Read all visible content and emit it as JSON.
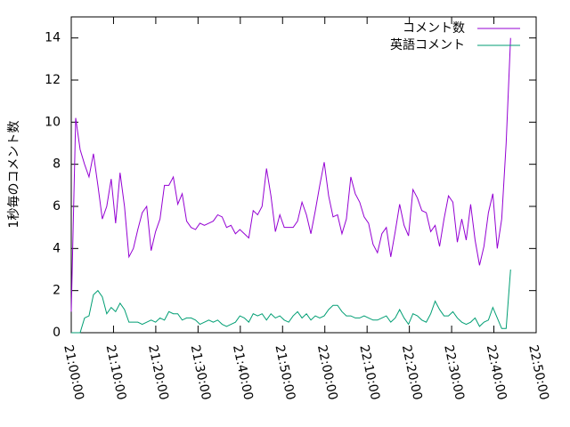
{
  "chart_data": {
    "type": "line",
    "y_label": "1秒毎のコメント数",
    "x": [
      "21:00:00",
      "21:01:03",
      "21:02:06",
      "21:03:09",
      "21:04:12",
      "21:05:15",
      "21:06:18",
      "21:07:21",
      "21:08:24",
      "21:09:27",
      "21:10:30",
      "21:11:33",
      "21:12:36",
      "21:13:39",
      "21:14:42",
      "21:15:45",
      "21:16:48",
      "21:17:51",
      "21:18:54",
      "21:19:57",
      "21:21:00",
      "21:22:03",
      "21:23:06",
      "21:24:09",
      "21:25:12",
      "21:26:15",
      "21:27:18",
      "21:28:21",
      "21:29:24",
      "21:30:27",
      "21:31:30",
      "21:32:33",
      "21:33:36",
      "21:34:39",
      "21:35:42",
      "21:36:45",
      "21:37:48",
      "21:38:51",
      "21:39:54",
      "21:40:57",
      "21:42:00",
      "21:43:03",
      "21:44:06",
      "21:45:09",
      "21:46:12",
      "21:47:15",
      "21:48:18",
      "21:49:21",
      "21:50:24",
      "21:51:27",
      "21:52:30",
      "21:53:33",
      "21:54:36",
      "21:55:39",
      "21:56:42",
      "21:57:45",
      "21:58:48",
      "21:59:51",
      "22:00:54",
      "22:01:57",
      "22:03:00",
      "22:04:03",
      "22:05:06",
      "22:06:09",
      "22:07:12",
      "22:08:15",
      "22:09:18",
      "22:10:21",
      "22:11:24",
      "22:12:27",
      "22:13:30",
      "22:14:33",
      "22:15:36",
      "22:16:39",
      "22:17:42",
      "22:18:45",
      "22:19:48",
      "22:20:51",
      "22:21:54",
      "22:22:57",
      "22:24:00",
      "22:25:03",
      "22:26:06",
      "22:27:09",
      "22:28:12",
      "22:29:15",
      "22:30:18",
      "22:31:21",
      "22:32:24",
      "22:33:27",
      "22:34:30",
      "22:35:33",
      "22:36:36",
      "22:37:39",
      "22:38:42",
      "22:39:45",
      "22:40:48",
      "22:41:51",
      "22:42:54",
      "22:43:57"
    ],
    "series": [
      {
        "name": "コメント数",
        "color": "#9400d3",
        "values": [
          1,
          10.2,
          8.7,
          8,
          7.4,
          8.5,
          7,
          5.4,
          6,
          7.3,
          5.2,
          7.6,
          6,
          3.6,
          4,
          4.9,
          5.7,
          6,
          3.9,
          4.8,
          5.4,
          7,
          7,
          7.4,
          6.1,
          6.6,
          5.3,
          5,
          4.9,
          5.2,
          5.1,
          5.2,
          5.3,
          5.6,
          5.5,
          5,
          5.1,
          4.7,
          4.9,
          4.7,
          4.5,
          5.8,
          5.6,
          6,
          7.8,
          6.5,
          4.8,
          5.6,
          5,
          5,
          5,
          5.3,
          6.2,
          5.6,
          4.7,
          5.8,
          7,
          8.1,
          6.5,
          5.5,
          5.6,
          4.7,
          5.4,
          7.4,
          6.6,
          6.2,
          5.5,
          5.2,
          4.2,
          3.8,
          4.7,
          5,
          3.6,
          4.8,
          6.1,
          5.1,
          4.6,
          6.8,
          6.4,
          5.8,
          5.7,
          4.8,
          5.1,
          4.1,
          5.4,
          6.5,
          6.2,
          4.3,
          5.4,
          4.4,
          6.1,
          4.4,
          3.2,
          4.1,
          5.7,
          6.6,
          4,
          5.4,
          9,
          14
        ]
      },
      {
        "name": "英語コメント",
        "color": "#009e73",
        "values": [
          0,
          0,
          0,
          0.7,
          0.8,
          1.8,
          2,
          1.7,
          0.9,
          1.2,
          1,
          1.4,
          1.1,
          0.5,
          0.5,
          0.5,
          0.4,
          0.5,
          0.6,
          0.5,
          0.7,
          0.6,
          1,
          0.9,
          0.9,
          0.6,
          0.7,
          0.7,
          0.6,
          0.4,
          0.5,
          0.6,
          0.5,
          0.6,
          0.4,
          0.3,
          0.4,
          0.5,
          0.8,
          0.7,
          0.5,
          0.9,
          0.8,
          0.9,
          0.6,
          0.9,
          0.7,
          0.8,
          0.6,
          0.5,
          0.8,
          1,
          0.7,
          0.9,
          0.6,
          0.8,
          0.7,
          0.8,
          1.1,
          1.3,
          1.3,
          1,
          0.8,
          0.8,
          0.7,
          0.7,
          0.8,
          0.7,
          0.6,
          0.6,
          0.7,
          0.8,
          0.5,
          0.7,
          1.1,
          0.7,
          0.4,
          0.9,
          0.8,
          0.6,
          0.5,
          0.9,
          1.5,
          1.1,
          0.8,
          0.8,
          1,
          0.7,
          0.5,
          0.4,
          0.5,
          0.7,
          0.3,
          0.5,
          0.6,
          1.2,
          0.7,
          0.2,
          0.2,
          3
        ]
      }
    ],
    "xlim": [
      "21:00:00",
      "22:50:00"
    ],
    "xticks": [
      "21:00:00",
      "21:10:00",
      "21:20:00",
      "21:30:00",
      "21:40:00",
      "21:50:00",
      "22:00:00",
      "22:10:00",
      "22:20:00",
      "22:30:00",
      "22:40:00",
      "22:50:00"
    ],
    "ylim": [
      0,
      15
    ],
    "yticks": [
      0,
      2,
      4,
      6,
      8,
      10,
      12,
      14
    ],
    "grid": false,
    "legend": "top-right"
  }
}
